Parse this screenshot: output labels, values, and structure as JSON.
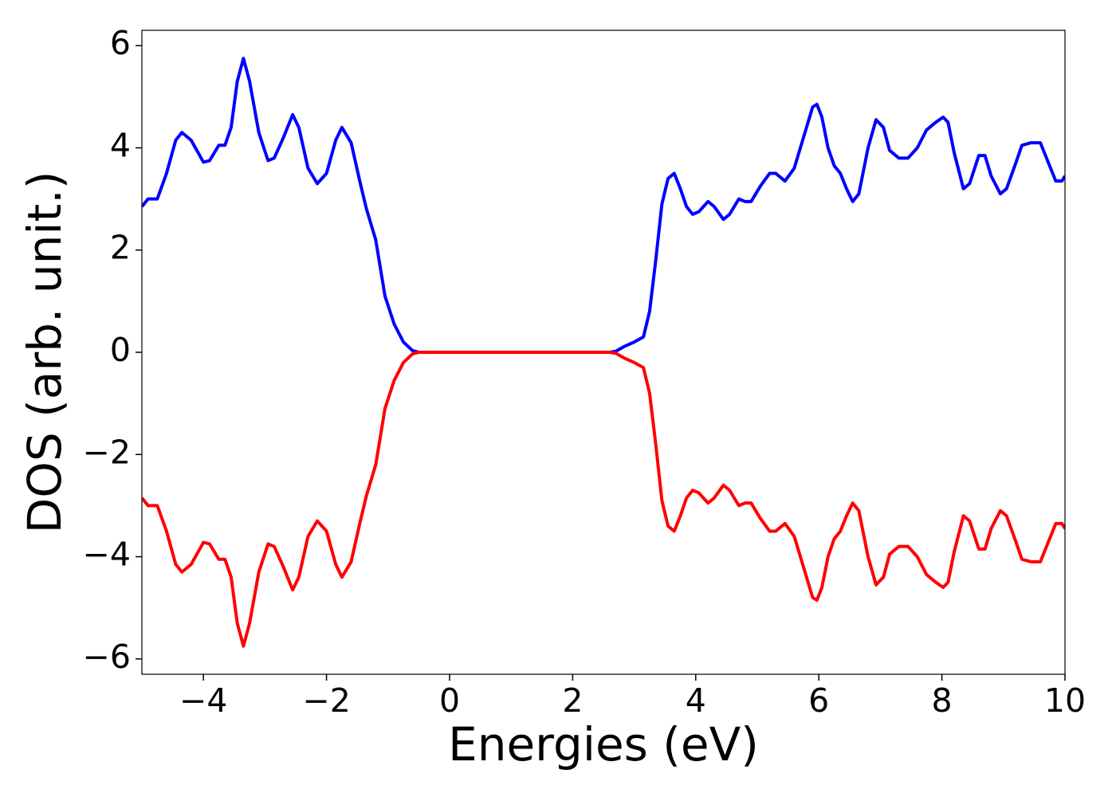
{
  "chart_data": {
    "type": "line",
    "xlabel": "Energies (eV)",
    "ylabel": "DOS (arb. unit.)",
    "x": [
      -5,
      -4.9,
      -4.75,
      -4.6,
      -4.45,
      -4.35,
      -4.2,
      -4.0,
      -3.9,
      -3.75,
      -3.65,
      -3.55,
      -3.45,
      -3.35,
      -3.25,
      -3.1,
      -2.95,
      -2.85,
      -2.7,
      -2.55,
      -2.45,
      -2.3,
      -2.15,
      -2.0,
      -1.85,
      -1.75,
      -1.6,
      -1.45,
      -1.35,
      -1.2,
      -1.05,
      -0.9,
      -0.75,
      -0.6,
      -0.5,
      0,
      0.5,
      1,
      1.5,
      2,
      2.5,
      2.6,
      2.7,
      2.85,
      3.0,
      3.15,
      3.25,
      3.35,
      3.45,
      3.55,
      3.65,
      3.75,
      3.85,
      3.95,
      4.05,
      4.2,
      4.3,
      4.45,
      4.55,
      4.7,
      4.8,
      4.9,
      5.05,
      5.2,
      5.3,
      5.45,
      5.6,
      5.75,
      5.9,
      5.97,
      6.05,
      6.15,
      6.25,
      6.35,
      6.45,
      6.55,
      6.65,
      6.8,
      6.93,
      7.05,
      7.15,
      7.3,
      7.45,
      7.6,
      7.75,
      7.9,
      8.02,
      8.1,
      8.2,
      8.35,
      8.45,
      8.6,
      8.7,
      8.8,
      8.95,
      9.05,
      9.2,
      9.3,
      9.45,
      9.6,
      9.7,
      9.85,
      9.95,
      10
    ],
    "series": [
      {
        "color": "#0000ff",
        "values": [
          2.85,
          3.0,
          3.0,
          3.5,
          4.15,
          4.3,
          4.15,
          3.72,
          3.75,
          4.05,
          4.05,
          4.4,
          5.3,
          5.75,
          5.3,
          4.3,
          3.75,
          3.8,
          4.2,
          4.65,
          4.4,
          3.6,
          3.3,
          3.5,
          4.15,
          4.4,
          4.1,
          3.3,
          2.8,
          2.2,
          1.1,
          0.55,
          0.2,
          0.03,
          0,
          0,
          0,
          0,
          0,
          0,
          0,
          0,
          0.02,
          0.12,
          0.2,
          0.3,
          0.8,
          1.8,
          2.9,
          3.4,
          3.5,
          3.2,
          2.85,
          2.7,
          2.75,
          2.95,
          2.85,
          2.6,
          2.7,
          3.0,
          2.95,
          2.95,
          3.25,
          3.5,
          3.5,
          3.35,
          3.6,
          4.2,
          4.8,
          4.85,
          4.6,
          4.0,
          3.65,
          3.5,
          3.2,
          2.95,
          3.1,
          4.0,
          4.55,
          4.4,
          3.95,
          3.8,
          3.8,
          4.0,
          4.35,
          4.5,
          4.6,
          4.5,
          3.9,
          3.2,
          3.3,
          3.85,
          3.85,
          3.45,
          3.1,
          3.2,
          3.7,
          4.05,
          4.1,
          4.1,
          3.8,
          3.35,
          3.35,
          3.45
        ]
      },
      {
        "color": "#ff0000",
        "values": [
          -2.85,
          -3.0,
          -3.0,
          -3.5,
          -4.15,
          -4.3,
          -4.15,
          -3.72,
          -3.75,
          -4.05,
          -4.05,
          -4.4,
          -5.3,
          -5.75,
          -5.3,
          -4.3,
          -3.75,
          -3.8,
          -4.2,
          -4.65,
          -4.4,
          -3.6,
          -3.3,
          -3.5,
          -4.15,
          -4.4,
          -4.1,
          -3.3,
          -2.8,
          -2.2,
          -1.1,
          -0.55,
          -0.2,
          -0.03,
          0,
          0,
          0,
          0,
          0,
          0,
          0,
          0,
          -0.02,
          -0.12,
          -0.2,
          -0.3,
          -0.8,
          -1.8,
          -2.9,
          -3.4,
          -3.5,
          -3.2,
          -2.85,
          -2.7,
          -2.75,
          -2.95,
          -2.85,
          -2.6,
          -2.7,
          -3.0,
          -2.95,
          -2.95,
          -3.25,
          -3.5,
          -3.5,
          -3.35,
          -3.6,
          -4.2,
          -4.8,
          -4.85,
          -4.6,
          -4.0,
          -3.65,
          -3.5,
          -3.2,
          -2.95,
          -3.1,
          -4.0,
          -4.55,
          -4.4,
          -3.95,
          -3.8,
          -3.8,
          -4.0,
          -4.35,
          -4.5,
          -4.6,
          -4.5,
          -3.9,
          -3.2,
          -3.3,
          -3.85,
          -3.85,
          -3.45,
          -3.1,
          -3.2,
          -3.7,
          -4.05,
          -4.1,
          -4.1,
          -3.8,
          -3.35,
          -3.35,
          -3.45
        ]
      }
    ],
    "xlim": [
      -5,
      10
    ],
    "xticks": [
      {
        "value": -4,
        "label": "−4"
      },
      {
        "value": -2,
        "label": "−2"
      },
      0,
      2,
      4,
      6,
      8,
      10
    ],
    "ylim": [
      -6.3,
      6.3
    ],
    "yticks": [
      {
        "value": -6,
        "label": "−6"
      },
      {
        "value": -4,
        "label": "−4"
      },
      {
        "value": -2,
        "label": "−2"
      },
      0,
      2,
      4,
      6
    ],
    "grid": false
  }
}
